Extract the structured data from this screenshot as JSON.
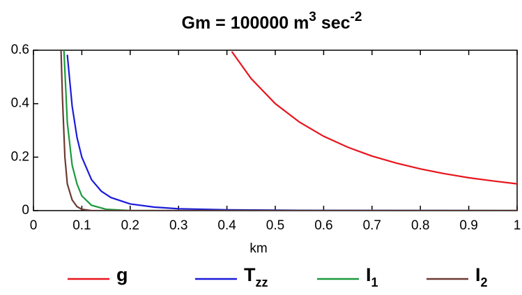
{
  "chart_data": {
    "type": "line",
    "title": [
      "Gm = 100000 m",
      "3",
      " sec",
      "-2"
    ],
    "x_label": "km",
    "xlim": [
      0,
      1
    ],
    "ylim": [
      0,
      0.6
    ],
    "xticks": [
      0,
      0.1,
      0.2,
      0.3,
      0.4,
      0.5,
      0.6,
      0.7,
      0.8,
      0.9,
      1
    ],
    "yticks": [
      0,
      0.2,
      0.4,
      0.6
    ],
    "series": [
      {
        "name": [
          "g"
        ],
        "color": "#e8141c",
        "x": [
          0.41,
          0.45,
          0.5,
          0.55,
          0.6,
          0.65,
          0.7,
          0.75,
          0.8,
          0.85,
          0.9,
          0.95,
          1
        ],
        "values": [
          0.595,
          0.494,
          0.4,
          0.331,
          0.278,
          0.237,
          0.204,
          0.178,
          0.156,
          0.138,
          0.123,
          0.111,
          0.1
        ]
      },
      {
        "name": [
          "T",
          "zz"
        ],
        "color": "#1a1adc",
        "x": [
          0.07,
          0.08,
          0.09,
          0.1,
          0.12,
          0.14,
          0.16,
          0.2,
          0.25,
          0.3,
          0.4,
          0.55,
          1
        ],
        "values": [
          0.583,
          0.391,
          0.274,
          0.2,
          0.116,
          0.073,
          0.049,
          0.025,
          0.013,
          0.007,
          0.003,
          0.001,
          0
        ]
      },
      {
        "name": [
          "I",
          "1"
        ],
        "color": "#1a9a3c",
        "x": [
          0.063,
          0.07,
          0.08,
          0.09,
          0.1,
          0.12,
          0.15,
          0.2,
          1
        ],
        "values": [
          0.6,
          0.33,
          0.17,
          0.1,
          0.055,
          0.02,
          0.005,
          0,
          0
        ]
      },
      {
        "name": [
          "I",
          "2"
        ],
        "color": "#6b3a32",
        "x": [
          0.057,
          0.06,
          0.065,
          0.07,
          0.08,
          0.09,
          0.1,
          0.12,
          1
        ],
        "values": [
          0.6,
          0.42,
          0.2,
          0.1,
          0.04,
          0.015,
          0.005,
          0,
          0
        ]
      }
    ]
  }
}
